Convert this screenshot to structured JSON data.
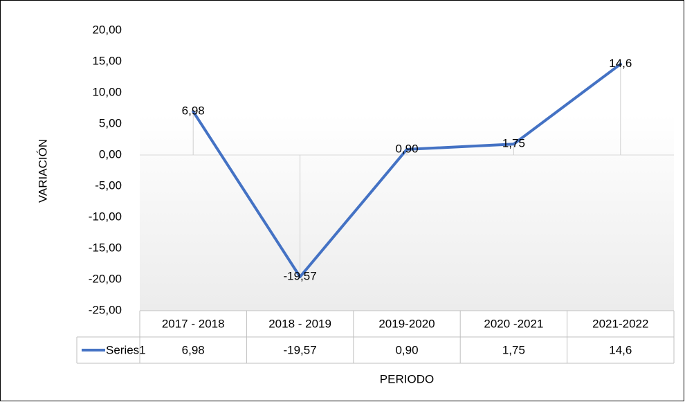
{
  "chart_data": {
    "type": "line",
    "categories": [
      "2017 - 2018",
      "2018 - 2019",
      "2019-2020",
      "2020 -2021",
      "2021-2022"
    ],
    "series": [
      {
        "name": "Series1",
        "color": "#4472c4",
        "values": [
          6.98,
          -19.57,
          0.9,
          1.75,
          14.6
        ],
        "value_labels": [
          "6,98",
          "-19,57",
          "0,90",
          "1,75",
          "14,6"
        ]
      }
    ],
    "y_axis_label": "VARIACIÓN",
    "x_axis_label": "PERIODO",
    "ylim": [
      -25,
      20
    ],
    "yticks": [
      {
        "value": -25,
        "label": "-25,00"
      },
      {
        "value": -20,
        "label": "-20,00"
      },
      {
        "value": -15,
        "label": "-15,00"
      },
      {
        "value": -10,
        "label": "-10,00"
      },
      {
        "value": -5,
        "label": "-5,00"
      },
      {
        "value": 0,
        "label": "0,00"
      },
      {
        "value": 5,
        "label": "5,00"
      },
      {
        "value": 10,
        "label": "10,00"
      },
      {
        "value": 15,
        "label": "15,00"
      },
      {
        "value": 20,
        "label": "20,00"
      }
    ],
    "grid": false,
    "drop_lines": true,
    "data_table": true
  }
}
